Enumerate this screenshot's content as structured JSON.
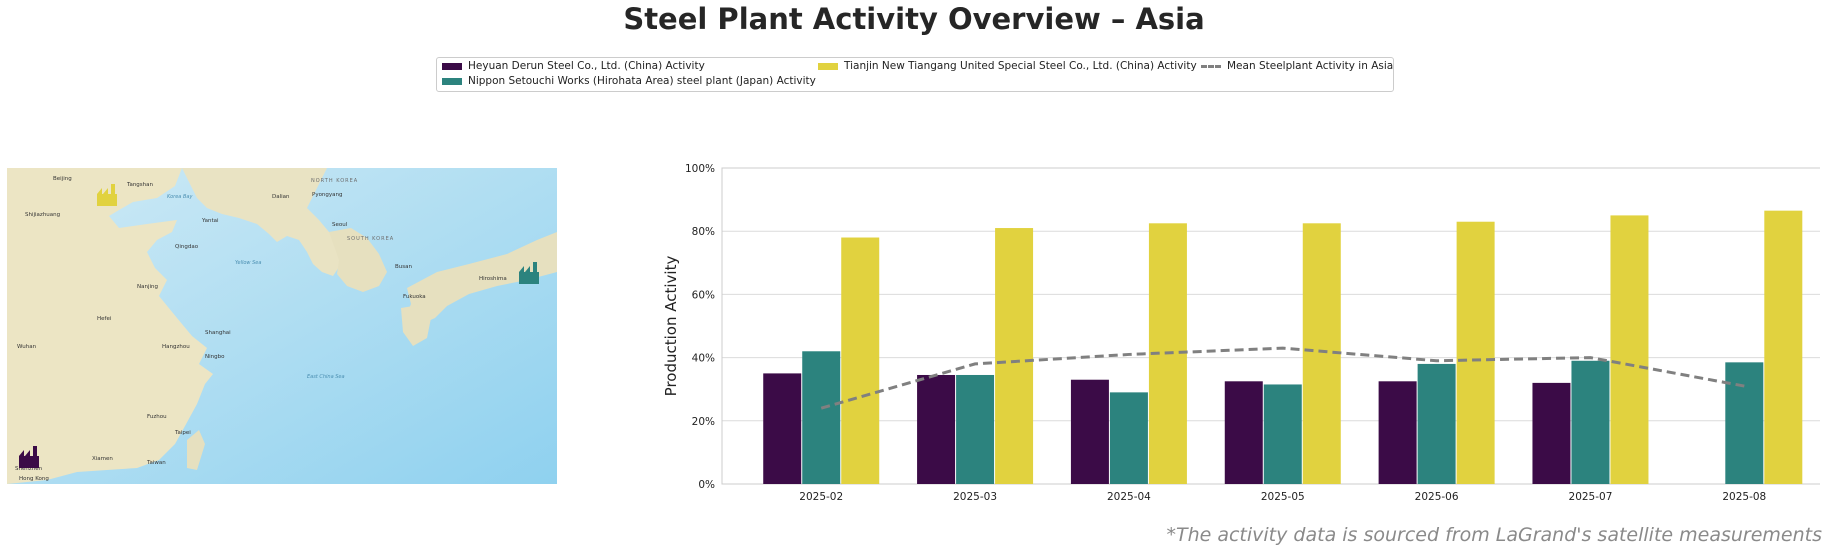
{
  "title": "Steel Plant Activity Overview – Asia",
  "footnote": "*The activity data is sourced from LaGrand's satellite measurements",
  "legend": {
    "items": [
      {
        "label": "Heyuan Derun Steel Co., Ltd. (China) Activity",
        "color": "#3b0b47",
        "kind": "bar"
      },
      {
        "label": "Nippon Setouchi Works (Hirohata Area) steel plant (Japan) Activity",
        "color": "#2c837e",
        "kind": "bar"
      },
      {
        "label": "Tianjin New Tiangang United Special Steel Co., Ltd. (China) Activity",
        "color": "#e1d23f",
        "kind": "bar"
      },
      {
        "label": "Mean Steelplant Activity in Asia",
        "color": "#808080",
        "kind": "line"
      }
    ]
  },
  "map": {
    "labels": {
      "north_korea": "NORTH KOREA",
      "south_korea": "SOUTH KOREA",
      "beijing": "Beijing",
      "tangshan": "Tangshan",
      "dalian": "Dalian",
      "shijiazhuang": "Shijiazhuang",
      "yantai": "Yantai",
      "qingdao": "Qingdao",
      "pyongyang": "Pyongyang",
      "seoul": "Seoul",
      "busan": "Busan",
      "hiroshima": "Hiroshima",
      "fukuoka": "Fukuoka",
      "nanjing": "Nanjing",
      "shanghai": "Shanghai",
      "hangzhou": "Hangzhou",
      "ningbo": "Ningbo",
      "hefei": "Hefei",
      "wuhan": "Wuhan",
      "fuzhou": "Fuzhou",
      "taipei": "Taipei",
      "xiamen": "Xiamen",
      "shenzhen": "Shenzhen",
      "hong_kong": "Hong Kong",
      "taiwan": "Taiwan",
      "yellow_sea": "Yellow Sea",
      "korea_bay": "Korea Bay",
      "east_china_sea": "East China Sea"
    },
    "markers": [
      {
        "plant": "Tianjin New Tiangang United Special Steel Co., Ltd.",
        "color": "#e1d23f"
      },
      {
        "plant": "Nippon Setouchi Works (Hirohata Area)",
        "color": "#2c837e"
      },
      {
        "plant": "Heyuan Derun Steel Co., Ltd.",
        "color": "#3b0b47"
      }
    ]
  },
  "chart_data": {
    "type": "bar",
    "title": "",
    "xlabel": "",
    "ylabel": "Production Activity",
    "ylim": [
      0,
      100
    ],
    "yticks": [
      "0%",
      "20%",
      "40%",
      "60%",
      "80%",
      "100%"
    ],
    "grid": true,
    "legend_position": "top-center",
    "categories": [
      "2025-02",
      "2025-03",
      "2025-04",
      "2025-05",
      "2025-06",
      "2025-07",
      "2025-08"
    ],
    "series": [
      {
        "name": "Heyuan Derun Steel Co., Ltd. (China) Activity",
        "color": "#3b0b47",
        "values": [
          35,
          34.5,
          33,
          32.5,
          32.5,
          32,
          null
        ]
      },
      {
        "name": "Nippon Setouchi Works (Hirohata Area) steel plant (Japan) Activity",
        "color": "#2c837e",
        "values": [
          42,
          34.5,
          29,
          31.5,
          38,
          39,
          38.5
        ]
      },
      {
        "name": "Tianjin New Tiangang United Special Steel Co., Ltd. (China) Activity",
        "color": "#e1d23f",
        "values": [
          78,
          81,
          82.5,
          82.5,
          83,
          85,
          86.5
        ]
      }
    ],
    "line_series": {
      "name": "Mean Steelplant Activity in Asia",
      "color": "#808080",
      "style": "dashed",
      "values": [
        24,
        38,
        41,
        43,
        39,
        40,
        31
      ]
    }
  }
}
